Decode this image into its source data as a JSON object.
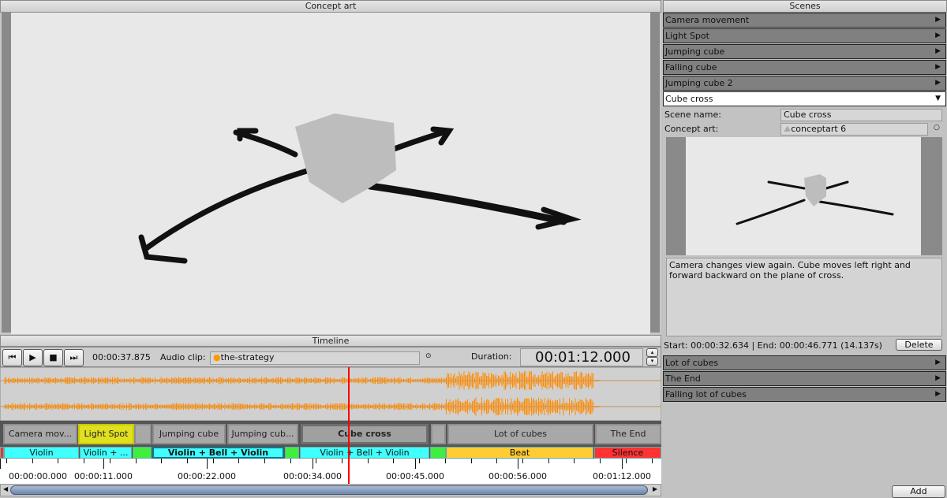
{
  "concept_panel": {
    "title": "Concept art"
  },
  "timeline": {
    "title": "Timeline",
    "current_time": "00:00:37.875",
    "audio_label": "Audio clip:",
    "audio_clip": "the-strategy",
    "duration_label": "Duration:",
    "duration": "00:01:12.000",
    "transport": [
      "skip-start",
      "play",
      "stop",
      "skip-end"
    ],
    "scene_blocks": [
      {
        "label": "Camera mov...",
        "color": "#a8a8a8"
      },
      {
        "label": "Light Spot",
        "color": "#e0e020"
      },
      {
        "label": "",
        "color": "#a8a8a8"
      },
      {
        "label": "Jumping cube",
        "color": "#a8a8a8"
      },
      {
        "label": "Jumping cub...",
        "color": "#a8a8a8"
      },
      {
        "label": "Cube cross",
        "color": "#a0a0a0"
      },
      {
        "label": "",
        "color": "#a8a8a8"
      },
      {
        "label": "Lot of cubes",
        "color": "#a8a8a8"
      },
      {
        "label": "The End",
        "color": "#a8a8a8"
      }
    ],
    "music_segments": [
      {
        "label": "",
        "color": "#ff3030"
      },
      {
        "label": "Violin",
        "color": "#40ffff"
      },
      {
        "label": "Violin + ...",
        "color": "#40ffff"
      },
      {
        "label": "",
        "color": "#40ee40"
      },
      {
        "label": "Violin + Bell + Violin",
        "color": "#40ffff"
      },
      {
        "label": "",
        "color": "#40ee40"
      },
      {
        "label": "Violin + Bell + Violin",
        "color": "#40ffff"
      },
      {
        "label": "",
        "color": "#40ee40"
      },
      {
        "label": "Beat",
        "color": "#ffcc33"
      },
      {
        "label": "Silence",
        "color": "#ff3333"
      }
    ],
    "ruler": [
      "00:00:00.000",
      "00:00:11.000",
      "00:00:22.000",
      "00:00:34.000",
      "00:00:45.000",
      "00:00:56.000",
      "00:01:12.000"
    ],
    "playhead_color": "#ff0000",
    "waveform_color": "#ff8c00"
  },
  "scenes_panel": {
    "title": "Scenes",
    "scenes_before": [
      "Camera movement",
      "Light Spot",
      "Jumping cube",
      "Falling cube",
      "Jumping cube 2"
    ],
    "selected": {
      "name": "Cube cross",
      "scene_name_label": "Scene name:",
      "scene_name": "Cube cross",
      "concept_art_label": "Concept art:",
      "concept_art": "conceptart 6",
      "description": "Camera changes view again. Cube moves left right and forward backward on the plane of cross.",
      "timing": "Start: 00:00:32.634 | End: 00:00:46.771 (14.137s)",
      "delete_label": "Delete"
    },
    "scenes_after": [
      "Lot of cubes",
      "The End",
      "Falling lot of cubes"
    ],
    "add_label": "Add"
  }
}
